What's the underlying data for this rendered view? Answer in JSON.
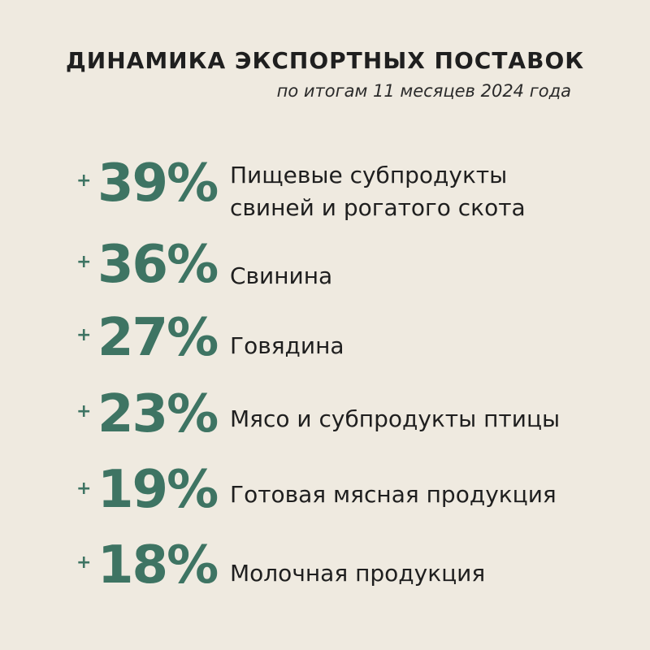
{
  "header": {
    "title": "ДИНАМИКА ЭКСПОРТНЫХ ПОСТАВОК",
    "subtitle": "по итогам 11 месяцев 2024 года"
  },
  "colors": {
    "background": "#efeae0",
    "accent": "#3e7463",
    "text": "#1f1f1f"
  },
  "items": [
    {
      "sign": "+",
      "value": "39%",
      "label_line1": "Пищевые субпродукты",
      "label_line2": "свиней и рогатого скота"
    },
    {
      "sign": "+",
      "value": "36%",
      "label_line1": "Свинина"
    },
    {
      "sign": "+",
      "value": "27%",
      "label_line1": "Говядина"
    },
    {
      "sign": "+",
      "value": "23%",
      "label_line1": "Мясо и субпродукты птицы"
    },
    {
      "sign": "+",
      "value": "19%",
      "label_line1": "Готовая мясная продукция"
    },
    {
      "sign": "+",
      "value": "18%",
      "label_line1": "Молочная продукция"
    }
  ]
}
